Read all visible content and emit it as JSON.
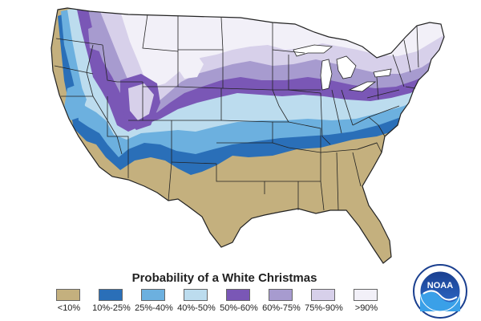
{
  "title": "Probability of a White Christmas",
  "colors": {
    "lt10": "#c4b07e",
    "c10_25": "#2a6fb8",
    "c25_40": "#6cb0df",
    "c40_50": "#bcdcee",
    "c50_60": "#7a57b6",
    "c60_75": "#a79bcf",
    "c75_90": "#d7d0ea",
    "gt90": "#f2f0f8",
    "border": "#222222"
  },
  "legend": [
    {
      "label": "<10%",
      "color": "#c4b07e"
    },
    {
      "label": "10%-25%",
      "color": "#2a6fb8"
    },
    {
      "label": "25%-40%",
      "color": "#6cb0df"
    },
    {
      "label": "40%-50%",
      "color": "#bcdcee"
    },
    {
      "label": "50%-60%",
      "color": "#7a57b6"
    },
    {
      "label": "60%-75%",
      "color": "#a79bcf"
    },
    {
      "label": "75%-90%",
      "color": "#d7d0ea"
    },
    {
      "label": ">90%",
      "color": "#f2f0f8"
    }
  ],
  "logo": {
    "text": "NOAA",
    "icon": "noaa-logo-icon"
  }
}
